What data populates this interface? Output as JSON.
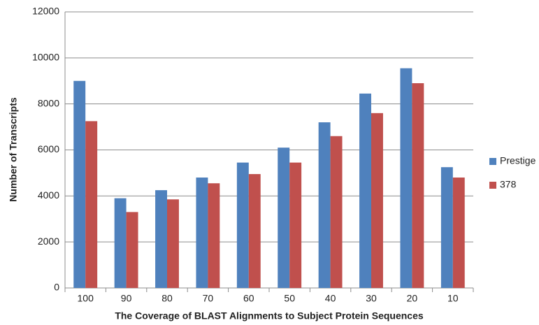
{
  "chart_data": {
    "type": "bar",
    "xlabel": "The Coverage of BLAST Alignments to Subject Protein Sequences",
    "ylabel": "Number of Transcripts",
    "categories": [
      "100",
      "90",
      "80",
      "70",
      "60",
      "50",
      "40",
      "30",
      "20",
      "10"
    ],
    "series": [
      {
        "name": "Prestige",
        "color": "#4f81bd",
        "values": [
          9000,
          3900,
          4250,
          4800,
          5450,
          6100,
          7200,
          8450,
          9550,
          5250
        ]
      },
      {
        "name": "378",
        "color": "#c0504d",
        "values": [
          7250,
          3300,
          3850,
          4550,
          4950,
          5450,
          6600,
          7600,
          8900,
          4800
        ]
      }
    ],
    "ylim": [
      0,
      12000
    ],
    "yticks": [
      0,
      2000,
      4000,
      6000,
      8000,
      10000,
      12000
    ],
    "grid": true,
    "legend": "right"
  }
}
